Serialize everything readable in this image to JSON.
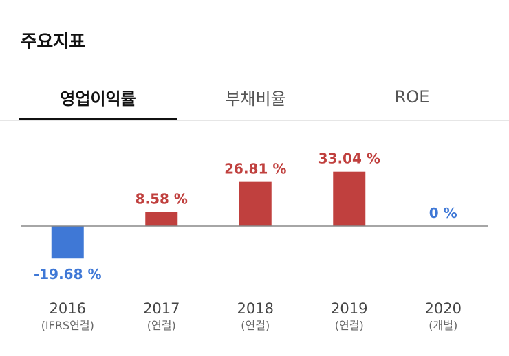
{
  "header": {
    "title": "주요지표"
  },
  "tabs": [
    {
      "label": "영업이익률",
      "active": true
    },
    {
      "label": "부채비율",
      "active": false
    },
    {
      "label": "ROE",
      "active": false
    }
  ],
  "colors": {
    "positive": "#c0403e",
    "negative": "#3f78d6",
    "zero_label": "#3f78d6",
    "axis": "#888888",
    "year_label": "#444444",
    "sub_label": "#666666"
  },
  "chart_data": {
    "type": "bar",
    "categories": [
      "2016",
      "2017",
      "2018",
      "2019",
      "2020"
    ],
    "sublabels": [
      "(IFRS연결)",
      "(연결)",
      "(연결)",
      "(연결)",
      "(개별)"
    ],
    "values": [
      -19.68,
      8.58,
      26.81,
      33.04,
      0
    ],
    "value_labels": [
      "-19.68 %",
      "8.58 %",
      "26.81 %",
      "33.04 %",
      "0 %"
    ],
    "title": "",
    "xlabel": "",
    "ylabel": "",
    "ylim": [
      -25,
      40
    ],
    "grid": false,
    "legend": "none"
  }
}
